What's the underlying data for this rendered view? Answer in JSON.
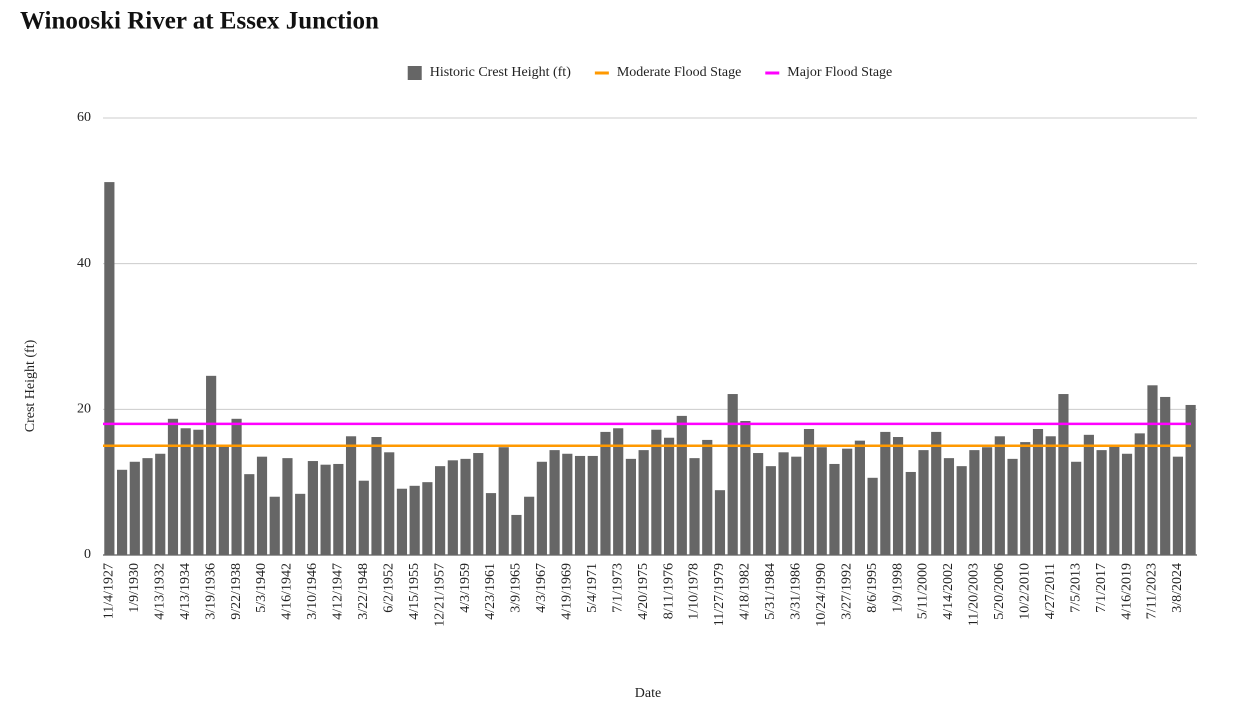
{
  "chart_data": {
    "type": "bar",
    "title": "Winooski River at Essex Junction",
    "x_label": "Date",
    "y_label": "Crest Height (ft)",
    "categories": [
      "11/4/1927",
      null,
      "1/9/1930",
      null,
      "4/13/1932",
      null,
      "4/13/1934",
      null,
      "3/19/1936",
      null,
      "9/22/1938",
      null,
      "5/3/1940",
      null,
      "4/16/1942",
      null,
      "3/10/1946",
      null,
      "4/12/1947",
      null,
      "3/22/1948",
      null,
      "6/2/1952",
      null,
      "4/15/1955",
      null,
      "12/21/1957",
      null,
      "4/3/1959",
      null,
      "4/23/1961",
      null,
      "3/9/1965",
      null,
      "4/3/1967",
      null,
      "4/19/1969",
      null,
      "5/4/1971",
      null,
      "7/1/1973",
      null,
      "4/20/1975",
      null,
      "8/11/1976",
      null,
      "1/10/1978",
      null,
      "11/27/1979",
      null,
      "4/18/1982",
      null,
      "5/31/1984",
      null,
      "3/31/1986",
      null,
      "10/24/1990",
      null,
      "3/27/1992",
      null,
      "8/6/1995",
      null,
      "1/9/1998",
      null,
      "5/11/2000",
      null,
      "4/14/2002",
      null,
      "11/20/2003",
      null,
      "5/20/2006",
      null,
      "10/2/2010",
      null,
      "4/27/2011",
      null,
      "7/5/2013",
      null,
      "7/1/2017",
      null,
      "4/16/2019",
      null,
      "7/11/2023",
      null,
      "3/8/2024",
      null
    ],
    "series": [
      {
        "name": "Historic Crest Height (ft)",
        "color": "#666666",
        "values": [
          51.2,
          11.7,
          12.8,
          13.3,
          13.9,
          18.7,
          17.4,
          17.2,
          24.6,
          15.1,
          18.7,
          11.1,
          13.5,
          8.0,
          13.3,
          8.4,
          12.9,
          12.4,
          12.5,
          16.3,
          10.2,
          16.2,
          14.1,
          9.1,
          9.5,
          10.0,
          12.2,
          13.0,
          13.2,
          14.0,
          8.5,
          14.8,
          5.5,
          8.0,
          12.8,
          14.4,
          13.9,
          13.6,
          13.6,
          16.9,
          17.4,
          13.2,
          14.4,
          17.2,
          16.1,
          19.1,
          13.3,
          15.8,
          8.9,
          22.1,
          18.4,
          14.0,
          12.2,
          14.1,
          13.5,
          17.3,
          14.8,
          12.5,
          14.6,
          15.7,
          10.6,
          16.9,
          16.2,
          11.4,
          14.4,
          16.9,
          13.3,
          12.2,
          14.4,
          14.8,
          16.3,
          13.2,
          15.5,
          17.3,
          16.3,
          22.1,
          12.8,
          16.5,
          14.4,
          15.1,
          13.9,
          16.7,
          23.3,
          21.7,
          13.5,
          20.6
        ]
      }
    ],
    "reference_lines": [
      {
        "name": "Moderate Flood Stage",
        "color": "#ff9900",
        "value": 15
      },
      {
        "name": "Major Flood Stage",
        "color": "#ff00ff",
        "value": 18
      }
    ],
    "ylim": [
      0,
      60
    ],
    "yticks": [
      0,
      20,
      40,
      60
    ],
    "grid": true,
    "legend": "top"
  }
}
